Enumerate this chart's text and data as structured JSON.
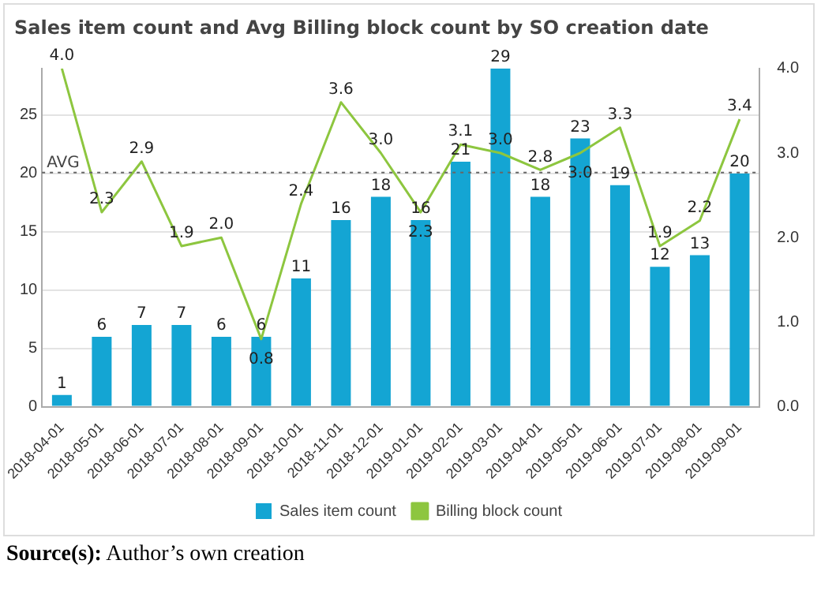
{
  "chart_data": {
    "type": "bar",
    "title": "Sales item count and Avg Billing block count by SO creation date",
    "categories": [
      "2018-04-01",
      "2018-05-01",
      "2018-06-01",
      "2018-07-01",
      "2018-08-01",
      "2018-09-01",
      "2018-10-01",
      "2018-11-01",
      "2018-12-01",
      "2019-01-01",
      "2019-02-01",
      "2019-03-01",
      "2019-04-01",
      "2019-05-01",
      "2019-06-01",
      "2019-07-01",
      "2019-08-01",
      "2019-09-01"
    ],
    "series": [
      {
        "name": "Sales item count",
        "color": "#14a5d3",
        "values": [
          1,
          6,
          7,
          7,
          6,
          6,
          11,
          16,
          18,
          16,
          21,
          29,
          18,
          23,
          19,
          12,
          13,
          20
        ]
      },
      {
        "name": "Billing block count",
        "type": "line",
        "axis": "y2",
        "color": "#8dc63f",
        "values": [
          4.0,
          2.3,
          2.9,
          1.9,
          2.0,
          0.8,
          2.4,
          3.6,
          3.0,
          2.3,
          3.1,
          3.0,
          2.8,
          3.0,
          3.3,
          1.9,
          2.2,
          3.4
        ],
        "value_labels": [
          "4.0",
          "2.3",
          "2.9",
          "1.9",
          "2.0",
          "0.8",
          "2.4",
          "3.6",
          "3.0",
          "2.3",
          "3.1",
          "3.0",
          "2.8",
          "3.0",
          "3.3",
          "1.9",
          "2.2",
          "3.4"
        ]
      }
    ],
    "ylim": [
      0,
      29
    ],
    "yticks": [
      0,
      5,
      10,
      15,
      20,
      25
    ],
    "y2lim": [
      0,
      4
    ],
    "y2ticks": [
      {
        "value": 0,
        "label": "0.0"
      },
      {
        "value": 1,
        "label": "1.0"
      },
      {
        "value": 2,
        "label": "2.0"
      },
      {
        "value": 3,
        "label": "3.0"
      },
      {
        "value": 4,
        "label": "4.0"
      }
    ],
    "ref_lines": [
      {
        "axis": "y2",
        "value": 2.77,
        "label": "AVG",
        "line_style": "dotted",
        "color": "#666666"
      }
    ],
    "data_labels": true,
    "grid": "y",
    "legend": "bottom",
    "marker": "none",
    "annotations": [
      "Source(s): Author’s own creation"
    ]
  }
}
